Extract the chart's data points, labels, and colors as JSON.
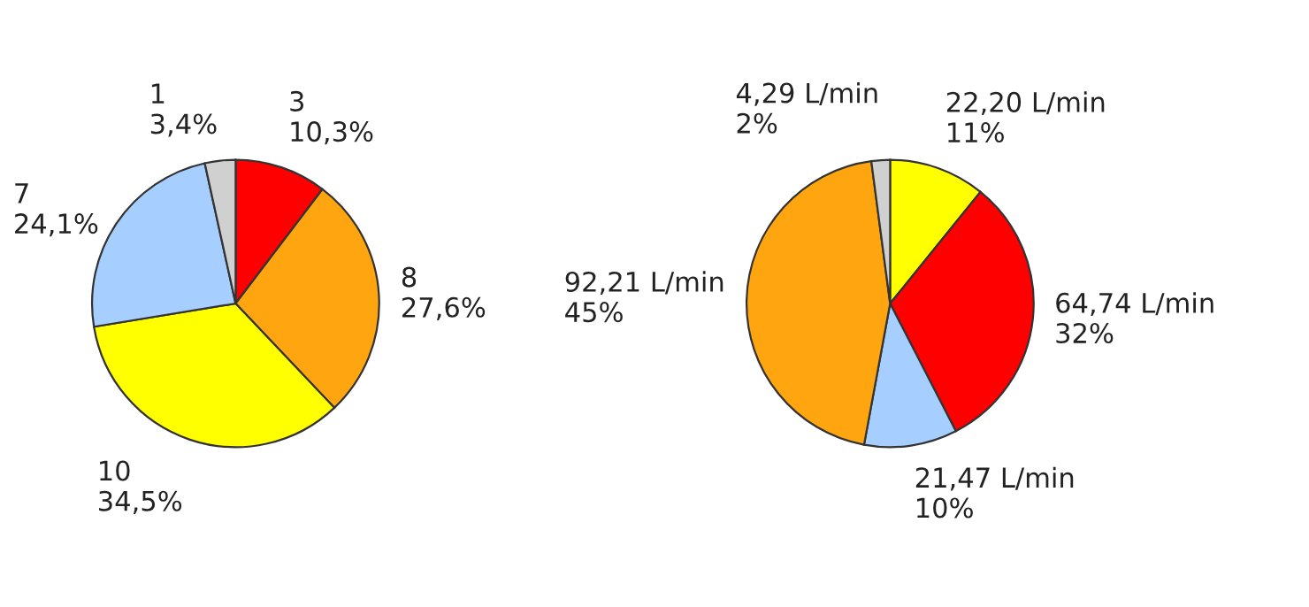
{
  "chart_data": [
    {
      "type": "pie",
      "categories": [
        null,
        null,
        null,
        null,
        null
      ],
      "values": [
        3,
        8,
        10,
        7,
        1
      ],
      "colors": [
        "#ff0000",
        "#ffa510",
        "#ffff00",
        "#a6cfff",
        "#d0d0d0"
      ],
      "value_labels": [
        "3\n10,3%",
        "8\n27,6%",
        "10\n34,5%",
        "7\n24,1%",
        "1\n3,4%"
      ]
    },
    {
      "type": "pie",
      "categories": [
        null,
        null,
        null,
        null,
        null
      ],
      "values": [
        22.2,
        64.74,
        21.47,
        92.21,
        4.29
      ],
      "colors": [
        "#ffff00",
        "#ff0000",
        "#a6cfff",
        "#ffa510",
        "#d0d0d0"
      ],
      "value_labels": [
        "22,20 L/min\n11%",
        "64,74 L/min\n32%",
        "21,47 L/min\n10%",
        "92,21 L/min\n45%",
        "4,29 L/min\n2%"
      ]
    }
  ]
}
